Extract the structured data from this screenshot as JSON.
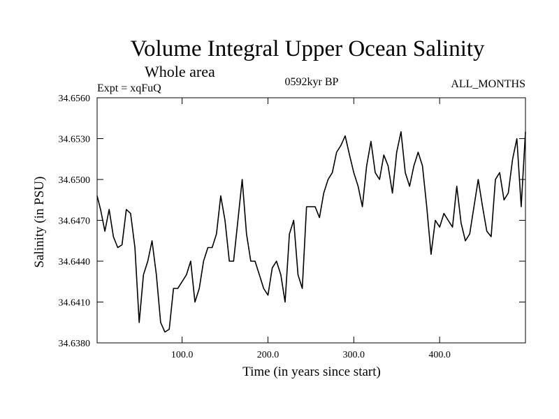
{
  "chart_data": {
    "type": "line",
    "title": "Volume Integral Upper Ocean Salinity",
    "subtitle": "Whole area",
    "experiment_label": "Expt = xqFuQ",
    "period_label": "0592kyr BP",
    "months_label": "ALL_MONTHS",
    "xlabel": "Time (in years since start)",
    "ylabel": "Salinity (in PSU)",
    "xlim": [
      1,
      500
    ],
    "ylim": [
      34.638,
      34.656
    ],
    "x_ticks": [
      100,
      200,
      300,
      400
    ],
    "x_tick_labels": [
      "100.0",
      "200.0",
      "300.0",
      "400.0"
    ],
    "y_ticks": [
      34.638,
      34.641,
      34.644,
      34.647,
      34.65,
      34.653,
      34.656
    ],
    "y_tick_labels": [
      "34.6380",
      "34.6410",
      "34.6440",
      "34.6470",
      "34.6500",
      "34.6530",
      "34.6560"
    ],
    "grid": false,
    "series": [
      {
        "name": "Salinity",
        "color": "#000000",
        "x": [
          1,
          5,
          10,
          15,
          20,
          25,
          30,
          35,
          40,
          45,
          50,
          55,
          60,
          65,
          70,
          75,
          80,
          85,
          90,
          95,
          100,
          105,
          110,
          115,
          120,
          125,
          130,
          135,
          140,
          145,
          150,
          155,
          160,
          165,
          170,
          175,
          180,
          185,
          190,
          195,
          200,
          205,
          210,
          215,
          220,
          225,
          230,
          235,
          240,
          245,
          250,
          255,
          260,
          265,
          270,
          275,
          280,
          285,
          290,
          295,
          300,
          305,
          310,
          315,
          320,
          325,
          330,
          335,
          340,
          345,
          350,
          355,
          360,
          365,
          370,
          375,
          380,
          385,
          390,
          395,
          400,
          405,
          410,
          415,
          420,
          425,
          430,
          435,
          440,
          445,
          450,
          455,
          460,
          465,
          470,
          475,
          480,
          485,
          490,
          495,
          500
        ],
        "values": [
          34.6488,
          34.6478,
          34.6462,
          34.6478,
          34.6458,
          34.645,
          34.6452,
          34.6478,
          34.6475,
          34.645,
          34.6395,
          34.643,
          34.644,
          34.6455,
          34.643,
          34.6395,
          34.6388,
          34.639,
          34.642,
          34.642,
          34.6425,
          34.643,
          34.644,
          34.641,
          34.642,
          34.644,
          34.645,
          34.645,
          34.646,
          34.6488,
          34.647,
          34.644,
          34.644,
          34.647,
          34.65,
          34.646,
          34.644,
          34.644,
          34.643,
          34.642,
          34.6415,
          34.6435,
          34.644,
          34.643,
          34.641,
          34.646,
          34.647,
          34.643,
          34.642,
          34.648,
          34.648,
          34.648,
          34.6472,
          34.649,
          34.65,
          34.6505,
          34.652,
          34.6525,
          34.6532,
          34.6518,
          34.6505,
          34.6495,
          34.648,
          34.651,
          34.6528,
          34.6505,
          34.65,
          34.6518,
          34.651,
          34.649,
          34.652,
          34.6535,
          34.6505,
          34.6495,
          34.651,
          34.652,
          34.651,
          34.648,
          34.6445,
          34.647,
          34.6465,
          34.6475,
          34.647,
          34.6465,
          34.6495,
          34.6468,
          34.6455,
          34.646,
          34.648,
          34.65,
          34.648,
          34.6462,
          34.6458,
          34.65,
          34.6505,
          34.6485,
          34.649,
          34.6515,
          34.653,
          34.648,
          34.6535
        ]
      }
    ]
  }
}
